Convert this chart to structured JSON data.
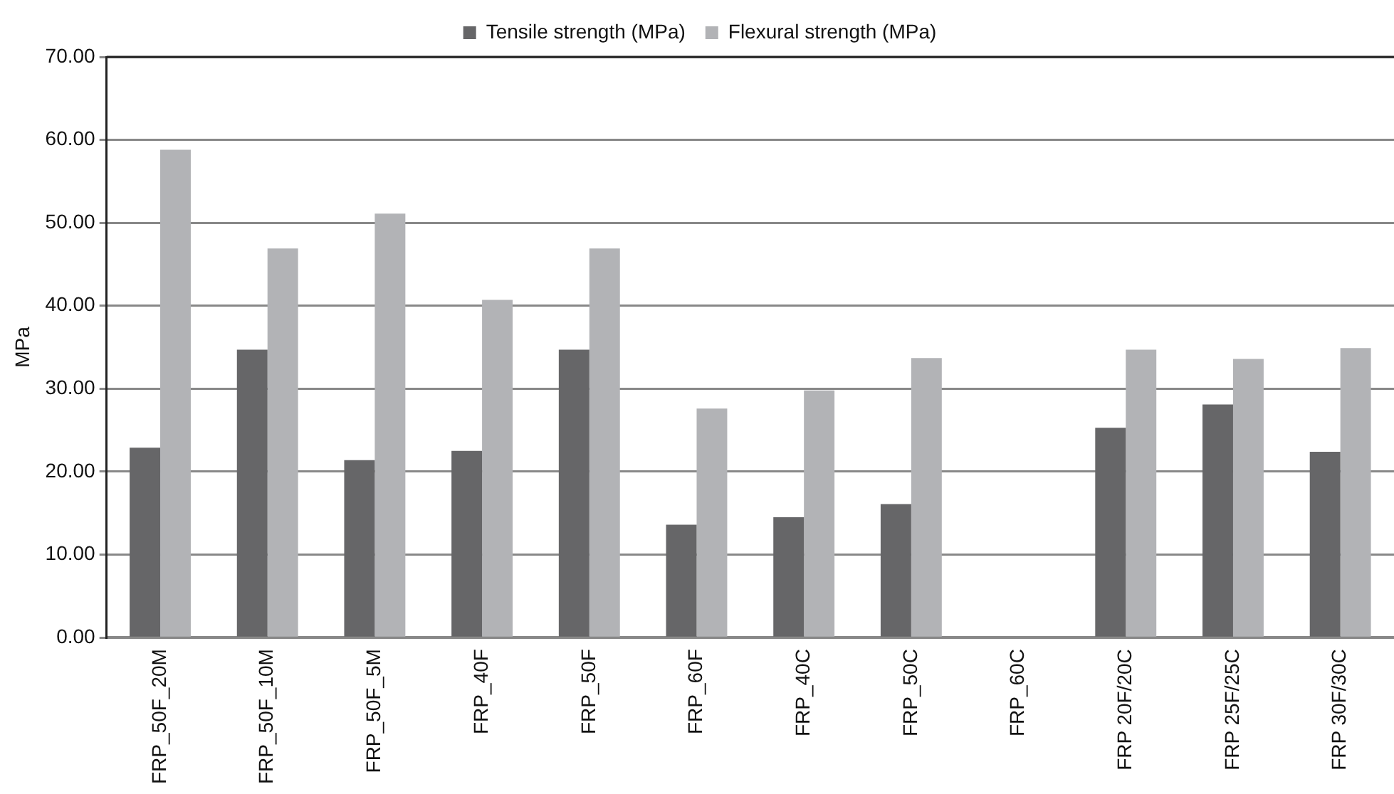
{
  "chart_data": {
    "type": "bar",
    "ylabel": "MPa",
    "categories": [
      "FRP_50F_20M",
      "FRP_50F_10M",
      "FRP_50F_5M",
      "FRP_40F",
      "FRP_50F",
      "FRP_60F",
      "FRP_40C",
      "FRP_50C",
      "FRP_60C",
      "FRP 20F/20C",
      "FRP 25F/25C",
      "FRP 30F/30C"
    ],
    "series": [
      {
        "name": "Tensile strength (MPa)",
        "color": "#666668",
        "values": [
          22.9,
          34.7,
          21.4,
          22.5,
          34.7,
          13.6,
          14.5,
          16.1,
          null,
          25.3,
          28.1,
          22.4
        ]
      },
      {
        "name": "Flexural strength (MPa)",
        "color": "#b2b3b6",
        "values": [
          58.8,
          46.9,
          51.1,
          40.7,
          46.9,
          27.6,
          29.8,
          33.7,
          null,
          34.7,
          33.6,
          34.9
        ]
      }
    ],
    "ylim": [
      0,
      70
    ],
    "yticks": [
      {
        "value": 0,
        "label": "0.00"
      },
      {
        "value": 10,
        "label": "10.00"
      },
      {
        "value": 20,
        "label": "20.00"
      },
      {
        "value": 30,
        "label": "30.00"
      },
      {
        "value": 40,
        "label": "40.00"
      },
      {
        "value": 50,
        "label": "50.00"
      },
      {
        "value": 60,
        "label": "60.00"
      },
      {
        "value": 70,
        "label": "70.00"
      }
    ],
    "grid": "y",
    "legend": "top"
  }
}
